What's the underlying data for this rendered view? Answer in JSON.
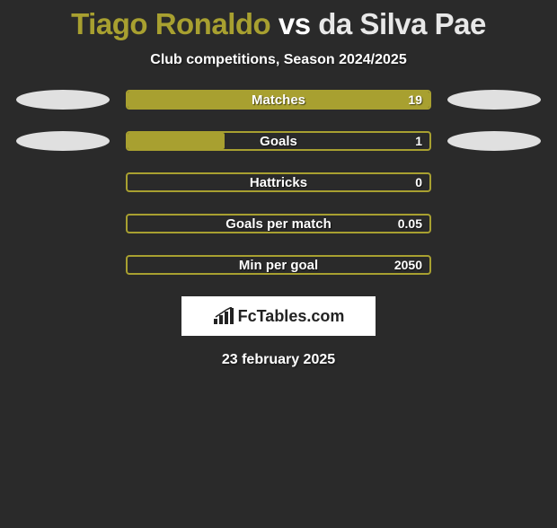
{
  "title": {
    "player1": "Tiago Ronaldo",
    "connector": "vs",
    "player2": "da Silva Pae",
    "player1_color": "#a8a030",
    "connector_color": "#ffffff",
    "player2_color": "#e8e8e8"
  },
  "subtitle": "Club competitions, Season 2024/2025",
  "accent_color": "#a8a030",
  "neutral_color": "#e0e0e0",
  "background_color": "#2a2a2a",
  "rows": [
    {
      "label": "Matches",
      "value": "19",
      "fill_pct": 100,
      "left_ellipse": true,
      "right_ellipse": true
    },
    {
      "label": "Goals",
      "value": "1",
      "fill_pct": 32,
      "left_ellipse": true,
      "right_ellipse": true
    },
    {
      "label": "Hattricks",
      "value": "0",
      "fill_pct": 0,
      "left_ellipse": false,
      "right_ellipse": false
    },
    {
      "label": "Goals per match",
      "value": "0.05",
      "fill_pct": 0,
      "left_ellipse": false,
      "right_ellipse": false
    },
    {
      "label": "Min per goal",
      "value": "2050",
      "fill_pct": 0,
      "left_ellipse": false,
      "right_ellipse": false
    }
  ],
  "brand": "FcTables.com",
  "date": "23 february 2025"
}
